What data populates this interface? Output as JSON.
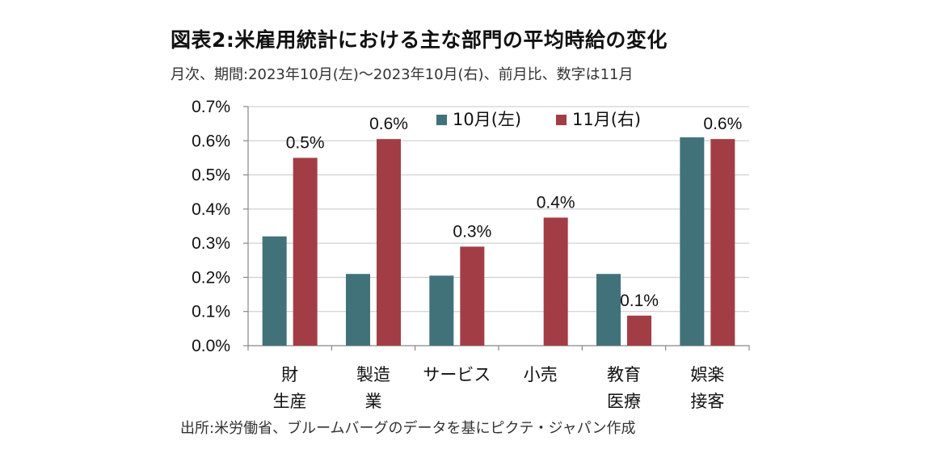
{
  "title": "図表2:米雇用統計における主な部門の平均時給の変化",
  "subtitle": "月次、期間:2023年10月(左)〜2023年10月(右)、前月比、数字は11月",
  "source": "出所:米労働省、ブルームバーグのデータを基にピクテ・ジャパン作成",
  "chart_data": {
    "type": "bar",
    "categories": [
      [
        "財",
        "生産"
      ],
      [
        "製造",
        "業"
      ],
      [
        "サービス"
      ],
      [
        "小売"
      ],
      [
        "教育",
        "医療"
      ],
      [
        "娯楽",
        "接客"
      ]
    ],
    "series": [
      {
        "name": "10月(左)",
        "color": "#41727A",
        "values": [
          0.32,
          0.21,
          0.205,
          null,
          0.21,
          0.61
        ]
      },
      {
        "name": "11月(右)",
        "color": "#A33D45",
        "values": [
          0.55,
          0.605,
          0.29,
          0.375,
          0.088,
          0.605
        ]
      }
    ],
    "data_labels": [
      "0.5%",
      "0.6%",
      "0.3%",
      "0.4%",
      "0.1%",
      "0.6%"
    ],
    "ylim": [
      0,
      0.7
    ],
    "yticks": [
      "0.0%",
      "0.1%",
      "0.2%",
      "0.3%",
      "0.4%",
      "0.5%",
      "0.6%",
      "0.7%"
    ],
    "grid": true,
    "legend": "top-center"
  }
}
